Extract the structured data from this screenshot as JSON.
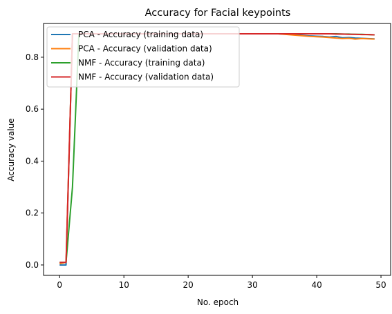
{
  "chart_data": {
    "type": "line",
    "title": "Accuracy for Facial keypoints",
    "xlabel": "No. epoch",
    "ylabel": "Accuracy value",
    "xlim": [
      -2.5,
      51.5
    ],
    "ylim": [
      -0.04,
      0.93
    ],
    "xticks": [
      0,
      10,
      20,
      30,
      40,
      50
    ],
    "yticks": [
      0.0,
      0.2,
      0.4,
      0.6,
      0.8
    ],
    "ytick_labels": [
      "0.0",
      "0.2",
      "0.4",
      "0.6",
      "0.8"
    ],
    "grid": false,
    "legend_position": "upper-left",
    "x": [
      0,
      1,
      2,
      3,
      4,
      5,
      6,
      7,
      8,
      9,
      10,
      11,
      12,
      13,
      14,
      15,
      16,
      17,
      18,
      19,
      20,
      21,
      22,
      23,
      24,
      25,
      26,
      27,
      28,
      29,
      30,
      31,
      32,
      33,
      34,
      35,
      36,
      37,
      38,
      39,
      40,
      41,
      42,
      43,
      44,
      45,
      46,
      47,
      48,
      49
    ],
    "series": [
      {
        "name": "PCA - Accuracy (training data)",
        "color": "#1f77b4",
        "values": [
          0.0,
          0.0,
          0.89,
          0.89,
          0.89,
          0.89,
          0.89,
          0.89,
          0.89,
          0.89,
          0.89,
          0.89,
          0.89,
          0.89,
          0.89,
          0.89,
          0.89,
          0.89,
          0.89,
          0.89,
          0.89,
          0.89,
          0.89,
          0.89,
          0.89,
          0.89,
          0.89,
          0.89,
          0.89,
          0.89,
          0.89,
          0.89,
          0.89,
          0.89,
          0.89,
          0.889,
          0.888,
          0.886,
          0.884,
          0.882,
          0.881,
          0.88,
          0.878,
          0.88,
          0.875,
          0.876,
          0.874,
          0.873,
          0.872,
          0.871
        ]
      },
      {
        "name": "PCA - Accuracy (validation data)",
        "color": "#ff7f0e",
        "values": [
          0.005,
          0.01,
          0.89,
          0.89,
          0.89,
          0.89,
          0.89,
          0.89,
          0.89,
          0.89,
          0.89,
          0.89,
          0.89,
          0.89,
          0.89,
          0.89,
          0.89,
          0.89,
          0.89,
          0.89,
          0.89,
          0.89,
          0.89,
          0.89,
          0.89,
          0.89,
          0.89,
          0.89,
          0.89,
          0.89,
          0.89,
          0.89,
          0.89,
          0.89,
          0.89,
          0.888,
          0.886,
          0.884,
          0.882,
          0.88,
          0.879,
          0.878,
          0.876,
          0.874,
          0.872,
          0.873,
          0.87,
          0.872,
          0.871,
          0.87
        ]
      },
      {
        "name": "NMF - Accuracy (training data)",
        "color": "#2ca02c",
        "values": [
          0.01,
          0.01,
          0.3,
          0.89,
          0.89,
          0.89,
          0.89,
          0.89,
          0.89,
          0.89,
          0.89,
          0.89,
          0.89,
          0.89,
          0.89,
          0.89,
          0.89,
          0.89,
          0.89,
          0.89,
          0.89,
          0.89,
          0.89,
          0.89,
          0.89,
          0.89,
          0.89,
          0.89,
          0.89,
          0.89,
          0.89,
          0.89,
          0.89,
          0.89,
          0.89,
          0.89,
          0.89,
          0.89,
          0.89,
          0.89,
          0.89,
          0.89,
          0.89,
          0.89,
          0.889,
          0.889,
          0.888,
          0.888,
          0.887,
          0.886
        ]
      },
      {
        "name": "NMF - Accuracy (validation data)",
        "color": "#d62728",
        "values": [
          0.01,
          0.01,
          0.89,
          0.89,
          0.89,
          0.89,
          0.89,
          0.89,
          0.89,
          0.89,
          0.89,
          0.89,
          0.89,
          0.89,
          0.89,
          0.89,
          0.89,
          0.89,
          0.89,
          0.89,
          0.89,
          0.89,
          0.89,
          0.89,
          0.89,
          0.89,
          0.89,
          0.89,
          0.89,
          0.89,
          0.89,
          0.89,
          0.89,
          0.89,
          0.89,
          0.89,
          0.89,
          0.89,
          0.89,
          0.89,
          0.89,
          0.89,
          0.89,
          0.889,
          0.889,
          0.888,
          0.888,
          0.887,
          0.887,
          0.886
        ]
      }
    ]
  }
}
